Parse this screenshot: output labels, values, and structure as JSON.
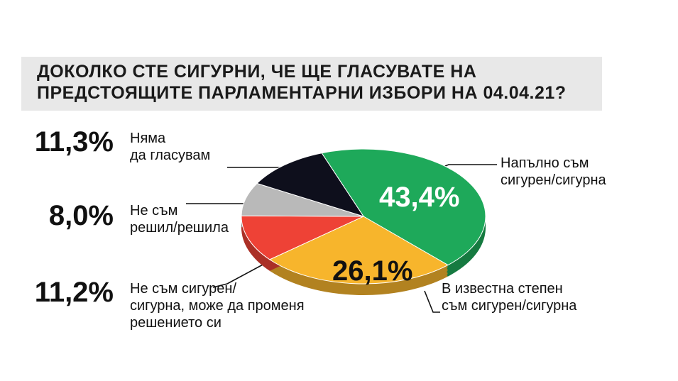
{
  "chart_data": {
    "type": "pie",
    "title": "ДОКОЛКО СТЕ СИГУРНИ, ЧЕ ЩЕ ГЛАСУВАТЕ НА\nПРЕДСТОЯЩИТЕ ПАРЛАМЕНТАРНИ ИЗБОРИ НА 04.04.21?",
    "categories": [
      "Напълно съм\nсигурен/сигурна",
      "В известна степен\nсъм сигурен/сигурна",
      "Не съм сигурен/\nсигурна, може да променя\nрешението си",
      "Не съм\nрешил/решила",
      "Няма\nда гласувам"
    ],
    "values": [
      43.4,
      26.1,
      11.2,
      8.0,
      11.3
    ],
    "value_labels": [
      "43,4%",
      "26,1%",
      "11,2%",
      "8,0%",
      "11,3%"
    ],
    "colors": [
      "#1ea95a",
      "#f7b52c",
      "#ee4236",
      "#b9b9b9",
      "#0e0f1c"
    ]
  }
}
